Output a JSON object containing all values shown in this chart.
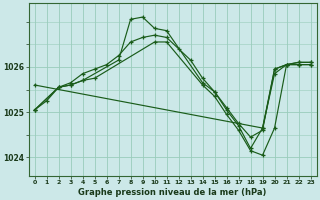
{
  "bg_color": "#cce8e8",
  "grid_color": "#99ccbb",
  "line_color": "#1a5c1a",
  "title": "Graphe pression niveau de la mer (hPa)",
  "xlim": [
    -0.5,
    23.5
  ],
  "ylim": [
    1023.6,
    1027.4
  ],
  "yticks": [
    1024,
    1025,
    1026
  ],
  "xticks": [
    0,
    1,
    2,
    3,
    4,
    5,
    6,
    7,
    8,
    9,
    10,
    11,
    12,
    13,
    14,
    15,
    16,
    17,
    18,
    19,
    20,
    21,
    22,
    23
  ],
  "series": [
    {
      "x": [
        0,
        1,
        2,
        3,
        4,
        5,
        6,
        7,
        8,
        9,
        10,
        11,
        12,
        13,
        14,
        15,
        16,
        17,
        18,
        19,
        20,
        21,
        22,
        23
      ],
      "y": [
        1025.05,
        1025.25,
        1025.55,
        1025.65,
        1025.85,
        1025.95,
        1026.05,
        1026.25,
        1026.55,
        1026.65,
        1026.7,
        1026.65,
        1026.4,
        1026.15,
        1025.75,
        1025.45,
        1025.1,
        1024.75,
        1024.45,
        1024.6,
        1025.95,
        1026.05,
        1026.1,
        1026.1
      ]
    },
    {
      "x": [
        0,
        2,
        3,
        4,
        7,
        8,
        9,
        10,
        11,
        14,
        15,
        16,
        17,
        18,
        19,
        20,
        21,
        22,
        23
      ],
      "y": [
        1025.05,
        1025.55,
        1025.6,
        1025.7,
        1026.15,
        1027.05,
        1027.1,
        1026.85,
        1026.8,
        1025.65,
        1025.45,
        1025.05,
        1024.7,
        1024.2,
        1024.65,
        1025.85,
        1026.05,
        1026.05,
        1026.05
      ]
    },
    {
      "x": [
        0,
        2,
        3,
        4,
        5,
        10,
        11,
        14,
        15,
        16,
        17,
        18,
        19,
        20,
        21,
        22,
        23
      ],
      "y": [
        1025.05,
        1025.55,
        1025.6,
        1025.7,
        1025.75,
        1026.55,
        1026.55,
        1025.6,
        1025.35,
        1024.95,
        1024.6,
        1024.15,
        1024.05,
        1024.65,
        1026.05,
        1026.05,
        1026.05
      ]
    },
    {
      "x": [
        0,
        19,
        20,
        21,
        22,
        23
      ],
      "y": [
        1025.6,
        1024.65,
        1025.95,
        1026.05,
        1026.1,
        1026.1
      ]
    }
  ]
}
